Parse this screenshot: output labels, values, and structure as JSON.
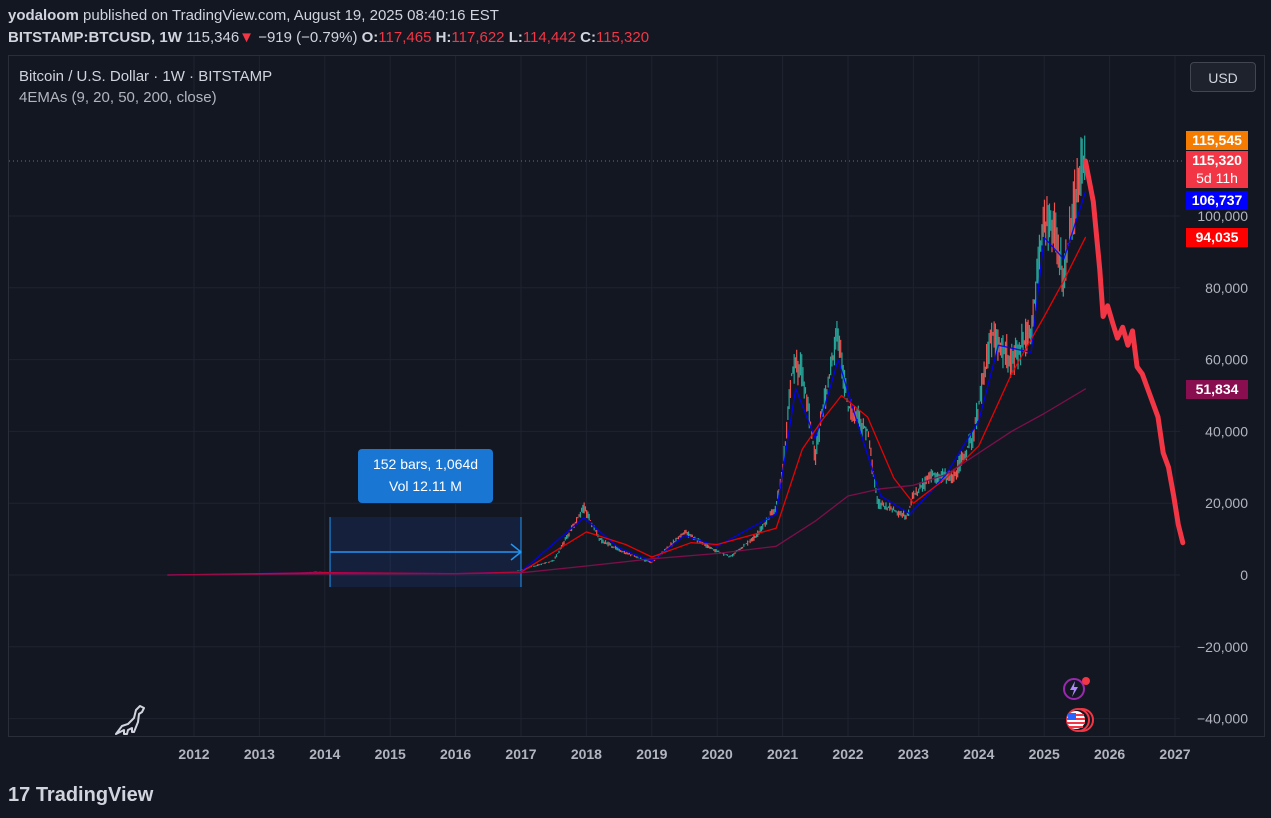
{
  "header": {
    "publisher": "yodaloom",
    "published_text": "published on TradingView.com, August 19, 2025 08:40:16 EST",
    "symbol": "BITSTAMP:BTCUSD",
    "interval": "1W",
    "last": "115,346",
    "change": "−919 (−0.79%)",
    "open_label": "O:",
    "open": "117,465",
    "high_label": "H:",
    "high": "117,622",
    "low_label": "L:",
    "low": "114,442",
    "close_label": "C:",
    "close": "115,320"
  },
  "legend": {
    "title": "Bitcoin / U.S. Dollar · 1W · BITSTAMP",
    "indicator": "4EMAs (9, 20, 50, 200, close)"
  },
  "currency_button": "USD",
  "price_tags": [
    {
      "text": "115,545",
      "color": "#f57c00"
    },
    {
      "text": "115,320",
      "color": "#f23645"
    },
    {
      "text": "5d 11h",
      "color": "#f23645"
    },
    {
      "text": "106,737",
      "color": "#0000ff"
    },
    {
      "text": "94,035",
      "color": "#ff0000"
    },
    {
      "text": "51,834",
      "color": "#880e4f"
    }
  ],
  "measure_tool": {
    "line1": "152 bars, 1,064d",
    "line2": "Vol 12.11 M"
  },
  "footer_brand": "TradingView",
  "chart_data": {
    "type": "line",
    "title": "Bitcoin / U.S. Dollar · 1W · BITSTAMP",
    "xlabel": "",
    "ylabel": "",
    "x_ticks": [
      "2012",
      "2013",
      "2014",
      "2015",
      "2016",
      "2017",
      "2018",
      "2019",
      "2020",
      "2021",
      "2022",
      "2023",
      "2024",
      "2025",
      "2026",
      "2027"
    ],
    "y_ticks": [
      -40000,
      -20000,
      0,
      20000,
      40000,
      60000,
      80000,
      100000
    ],
    "y_tick_labels": [
      "−40,000",
      "−20,000",
      "0",
      "20,000",
      "40,000",
      "60,000",
      "80,000",
      "100,000"
    ],
    "xlim": [
      2011.6,
      2027.2
    ],
    "ylim": [
      -44000,
      126000
    ],
    "grid": true,
    "current_price": 115320,
    "series": [
      {
        "color": "#26a69a",
        "x": [
          2011.6,
          2013.0,
          2013.9,
          2014.5,
          2015.0,
          2016.0,
          2016.9,
          2017.5,
          2017.96,
          2018.2,
          2018.5,
          2018.9,
          2019.0,
          2019.5,
          2019.9,
          2020.2,
          2020.6,
          2020.9,
          2021.0,
          2021.15,
          2021.3,
          2021.5,
          2021.6,
          2021.85,
          2022.0,
          2022.3,
          2022.45,
          2022.9,
          2023.0,
          2023.3,
          2023.6,
          2023.9,
          2024.2,
          2024.5,
          2024.8,
          2024.96,
          2025.1,
          2025.3,
          2025.5,
          2025.63
        ],
        "y": [
          5,
          100,
          900,
          500,
          250,
          400,
          900,
          4000,
          19000,
          10000,
          7000,
          4000,
          3500,
          12000,
          7500,
          5000,
          11000,
          19000,
          29000,
          58000,
          57000,
          33000,
          45000,
          67000,
          47000,
          40000,
          20000,
          16500,
          22000,
          28000,
          27000,
          38000,
          67000,
          60000,
          68000,
          95000,
          100000,
          84000,
          108000,
          117000
        ]
      },
      {
        "name": "",
        "color": "#0000ff",
        "x": [
          2011.6,
          2014.0,
          2016.0,
          2017.0,
          2017.96,
          2018.5,
          2019.0,
          2019.5,
          2020.0,
          2020.9,
          2021.2,
          2021.5,
          2021.85,
          2022.1,
          2022.5,
          2022.95,
          2023.5,
          2024.0,
          2024.3,
          2024.8,
          2025.0,
          2025.3,
          2025.63
        ],
        "y": [
          5,
          700,
          400,
          900,
          16000,
          7500,
          3800,
          11000,
          8000,
          17000,
          52000,
          38000,
          60000,
          45000,
          22000,
          17000,
          28000,
          43000,
          64000,
          62000,
          94000,
          88000,
          106737
        ]
      },
      {
        "name": "",
        "color": "#ff0000",
        "x": [
          2011.6,
          2014.0,
          2016.0,
          2017.0,
          2018.0,
          2018.6,
          2019.0,
          2019.6,
          2020.0,
          2020.9,
          2021.3,
          2021.6,
          2021.9,
          2022.3,
          2022.7,
          2023.0,
          2023.5,
          2024.0,
          2024.5,
          2025.0,
          2025.3,
          2025.63
        ],
        "y": [
          5,
          600,
          400,
          800,
          12000,
          8500,
          5000,
          9000,
          8500,
          13000,
          35000,
          43000,
          50000,
          44000,
          27000,
          20000,
          27000,
          36000,
          56000,
          72000,
          82000,
          94035
        ]
      },
      {
        "name": "",
        "color": "#880e4f",
        "x": [
          2011.6,
          2014.0,
          2016.0,
          2017.0,
          2018.0,
          2019.0,
          2020.0,
          2020.9,
          2021.5,
          2022.0,
          2022.5,
          2023.0,
          2023.5,
          2024.0,
          2024.5,
          2025.0,
          2025.63
        ],
        "y": [
          5,
          300,
          350,
          600,
          2500,
          4500,
          6000,
          8000,
          15000,
          22000,
          24000,
          25000,
          28000,
          34000,
          40000,
          45000,
          51834
        ]
      },
      {
        "name": "",
        "color": "#f23645",
        "x": [
          2025.63,
          2025.75,
          2025.85,
          2025.9,
          2025.97,
          2026.05,
          2026.12,
          2026.2,
          2026.28,
          2026.35,
          2026.42,
          2026.5,
          2026.58,
          2026.66,
          2026.74,
          2026.82,
          2026.9,
          2026.98,
          2027.05,
          2027.12
        ],
        "y": [
          115320,
          104000,
          85000,
          72000,
          75000,
          70000,
          66000,
          69000,
          64000,
          68000,
          58000,
          56000,
          52000,
          48000,
          44000,
          34000,
          30000,
          22000,
          14000,
          9000
        ]
      }
    ],
    "measure_range": {
      "x": [
        2014.08,
        2017.0
      ],
      "bars": 152,
      "days": 1064
    }
  }
}
